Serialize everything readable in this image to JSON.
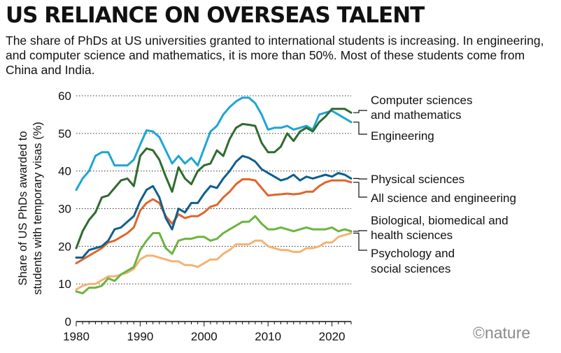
{
  "title": "US RELIANCE ON OVERSEAS TALENT",
  "subtitle": "The share of PhDs at US universities granted to international students is increasing. In engineering, and computer science and mathematics, it is more than 50%. Most of these students come from China and India.",
  "credit": "©nature",
  "chart_data": {
    "type": "line",
    "ylabel": [
      "Share of US PhDs awarded to",
      "students with temporary visas (%)"
    ],
    "xlabel": "",
    "xlim": [
      1980,
      2023
    ],
    "ylim": [
      0,
      60
    ],
    "xticks": [
      "1980",
      "1990",
      "2000",
      "2010",
      "2020"
    ],
    "yticks": [
      "0",
      "10",
      "20",
      "30",
      "40",
      "50",
      "60"
    ],
    "grid": "dotted horizontal",
    "legend": "direct labels at right",
    "x": [
      1980,
      1981,
      1982,
      1983,
      1984,
      1985,
      1986,
      1987,
      1988,
      1989,
      1990,
      1991,
      1992,
      1993,
      1994,
      1995,
      1996,
      1997,
      1998,
      1999,
      2000,
      2001,
      2002,
      2003,
      2004,
      2005,
      2006,
      2007,
      2008,
      2009,
      2010,
      2011,
      2012,
      2013,
      2014,
      2015,
      2016,
      2017,
      2018,
      2019,
      2020,
      2021,
      2022,
      2023
    ],
    "series": [
      {
        "name": "Computer sciences and mathematics",
        "label_lines": [
          "Computer sciences",
          "and mathematics"
        ],
        "color": "#2e6b2e",
        "values": [
          19.5,
          24,
          27,
          29,
          33,
          33.5,
          35.5,
          37.5,
          38,
          36,
          44,
          46,
          45.5,
          43,
          38.5,
          34.5,
          41,
          38,
          36.5,
          40,
          41.5,
          42,
          45.5,
          44,
          48.5,
          51.5,
          52.5,
          52.3,
          52,
          47.5,
          45,
          45,
          46.5,
          50,
          48,
          50.5,
          51.5,
          50.5,
          53,
          54.5,
          56.5,
          56.5,
          56.5,
          55.5
        ]
      },
      {
        "name": "Engineering",
        "label_lines": [
          "Engineering"
        ],
        "color": "#1ea5d4",
        "values": [
          35,
          38,
          40,
          44,
          45,
          45,
          41.5,
          41.5,
          41.5,
          43,
          47,
          50.8,
          50.5,
          49,
          45.5,
          42,
          44,
          42,
          43.5,
          41.5,
          46,
          50.5,
          52,
          55,
          57,
          58.5,
          59.5,
          59.5,
          58,
          55,
          51,
          51.5,
          51.5,
          52,
          51,
          51.5,
          52,
          51,
          55,
          55.5,
          56,
          55,
          54,
          53
        ]
      },
      {
        "name": "Physical sciences",
        "label_lines": [
          "Physical sciences"
        ],
        "color": "#0e5f8e",
        "values": [
          17,
          17,
          19,
          19.5,
          20,
          21.5,
          24.5,
          25,
          26.5,
          28,
          32,
          35,
          36,
          33,
          27.5,
          24.5,
          30,
          29,
          31.5,
          31.5,
          34,
          36,
          35.5,
          38,
          40,
          42.5,
          44,
          43.5,
          42.5,
          40.5,
          39.5,
          38.5,
          37.5,
          38,
          39,
          37.5,
          38.5,
          38,
          38.5,
          39,
          38.5,
          39.5,
          39,
          38
        ]
      },
      {
        "name": "All science and engineering",
        "label_lines": [
          "All science and engineering"
        ],
        "color": "#e0662a",
        "values": [
          15.5,
          16.5,
          17.5,
          18.5,
          19.5,
          21,
          21.5,
          22.5,
          23.5,
          25,
          29.5,
          31.5,
          32.5,
          31.5,
          28,
          26,
          28.5,
          27.5,
          28,
          28,
          29,
          30.5,
          31,
          33,
          34.5,
          36.5,
          37.8,
          37.8,
          37.5,
          35.5,
          33.5,
          33.7,
          33.8,
          34,
          33.8,
          34,
          34.5,
          34.5,
          36,
          37,
          37.5,
          37.5,
          37.5,
          37
        ]
      },
      {
        "name": "Biological, biomedical and health sciences",
        "label_lines": [
          "Biological, biomedical and",
          "health sciences"
        ],
        "color": "#6cb43f",
        "values": [
          8,
          7.5,
          9,
          9,
          9.5,
          11.5,
          10.8,
          12.5,
          13.5,
          14.5,
          19,
          21.5,
          23.5,
          23.5,
          19.5,
          18,
          21.5,
          22,
          22,
          22.5,
          22.5,
          21.5,
          22,
          23.5,
          24.5,
          25.5,
          26.5,
          26.5,
          28,
          26,
          24.5,
          24.5,
          25,
          24.5,
          24,
          24.5,
          25,
          24.5,
          24.5,
          24.5,
          25,
          24,
          24.5,
          24
        ]
      },
      {
        "name": "Psychology and social sciences",
        "label_lines": [
          "Psychology and",
          "social sciences"
        ],
        "color": "#f5b274",
        "values": [
          8.5,
          9.5,
          10,
          10,
          11,
          12,
          12,
          12.5,
          13,
          14,
          16.5,
          17.5,
          17.5,
          17,
          16.5,
          16,
          16,
          15,
          15,
          14.5,
          15.5,
          16.5,
          16.5,
          18,
          19,
          20.5,
          20.5,
          20.5,
          21.5,
          21.5,
          20,
          19.5,
          19,
          19,
          18.5,
          18.5,
          19.5,
          19.5,
          20,
          21,
          21,
          22.5,
          23,
          23.5
        ]
      }
    ]
  }
}
